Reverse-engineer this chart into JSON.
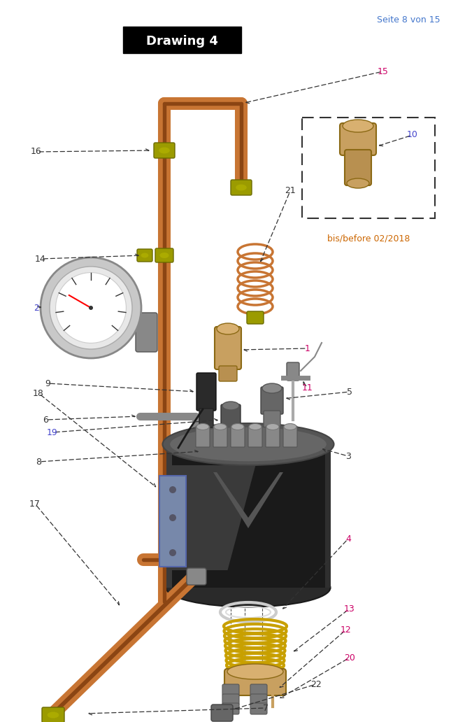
{
  "title": "Drawing 4",
  "page_info": "Seite 8 von 15",
  "bg_color": "#ffffff",
  "figsize": [
    6.45,
    10.32
  ],
  "dpi": 100,
  "inset_label": "bis/before 02/2018",
  "inset_label_color": "#cc6600",
  "copper": "#C87533",
  "copper_dark": "#8B4513",
  "brass_green": "#8B8B00",
  "brass_green2": "#9B9B00",
  "boiler_dark": "#1a1a1a",
  "boiler_mid": "#3a3a3a",
  "boiler_light": "#555555",
  "gray_fitting": "#666666",
  "silver": "#aaaaaa"
}
